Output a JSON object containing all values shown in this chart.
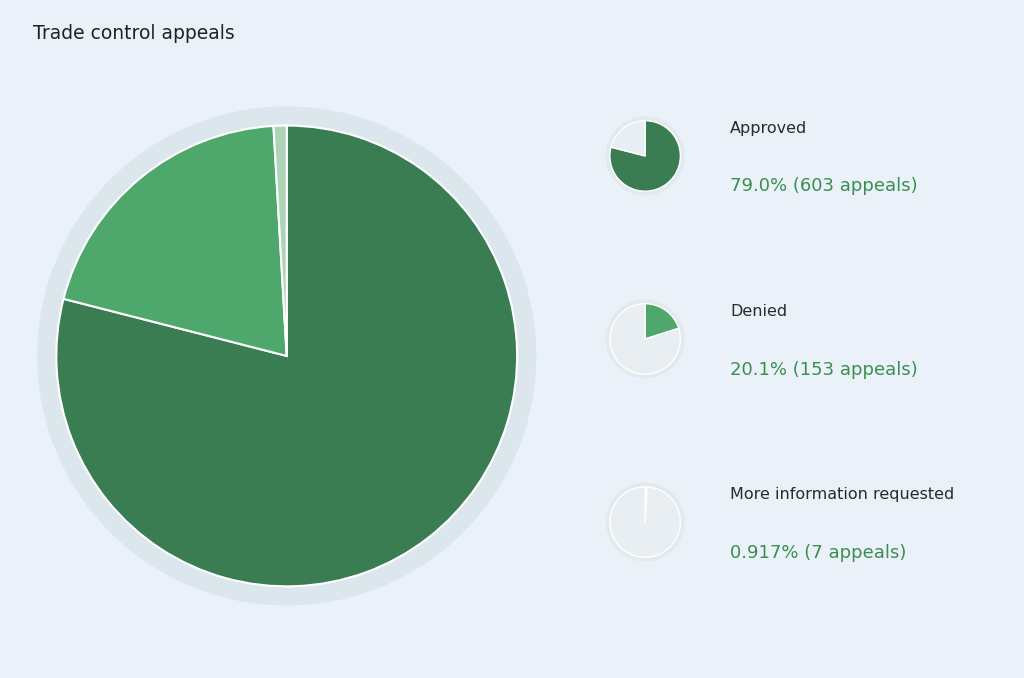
{
  "title": "Trade control appeals",
  "background_color": "#eaf1f8",
  "slices": [
    {
      "label": "Approved",
      "pct": 79.0,
      "pct_str": "79.0",
      "count": 603,
      "color": "#3a7d52"
    },
    {
      "label": "Denied",
      "pct": 20.1,
      "pct_str": "20.1",
      "count": 153,
      "color": "#4fa86b"
    },
    {
      "label": "More information requested",
      "pct": 0.917,
      "pct_str": "0.917",
      "count": 7,
      "color": "#aed4b8"
    }
  ],
  "mini_bg_color": "#e2eaee",
  "mini_pie_bg": "#e8eef2",
  "main_bg_circle": "#dce6ed",
  "legend_green": "#3a8f50",
  "label_color": "#2a2a2a",
  "title_color": "#222222",
  "title_line_color": "#d0d8e0"
}
